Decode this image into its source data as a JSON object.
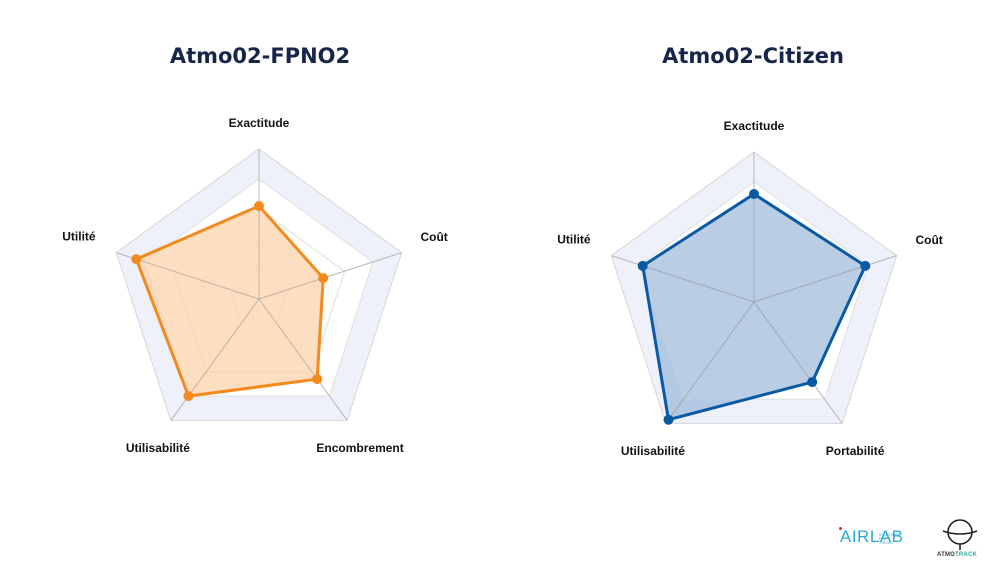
{
  "chart_data": [
    {
      "type": "radar",
      "title": "Atmo02-FPNO2",
      "axes": [
        "Exactitude",
        "Coût",
        "Encombrement",
        "Utilisabilité",
        "Utilité"
      ],
      "rlim": [
        0,
        5
      ],
      "values": [
        3.1,
        2.25,
        3.3,
        4.0,
        4.3
      ],
      "color": "#f28a1e",
      "fill": "#fcc99a"
    },
    {
      "type": "radar",
      "title": "Atmo02-Citizen",
      "axes": [
        "Exactitude",
        "Coût",
        "Portabilité",
        "Utilisabilité",
        "Utilité"
      ],
      "rlim": [
        0,
        5
      ],
      "values": [
        3.6,
        3.9,
        3.3,
        4.85,
        3.9
      ],
      "color": "#0a5aa3",
      "fill": "#8eaed3"
    }
  ],
  "logos": {
    "airlab": "AIRLAB",
    "airlab_tagline": "SOLUTIONS FOR THE AIR",
    "atmotrack_prefix": "ATMO",
    "atmotrack_suffix": "TRACK"
  },
  "colors": {
    "title": "#16254a",
    "grid": "#d6d6d6",
    "band": "#eef1f9"
  }
}
